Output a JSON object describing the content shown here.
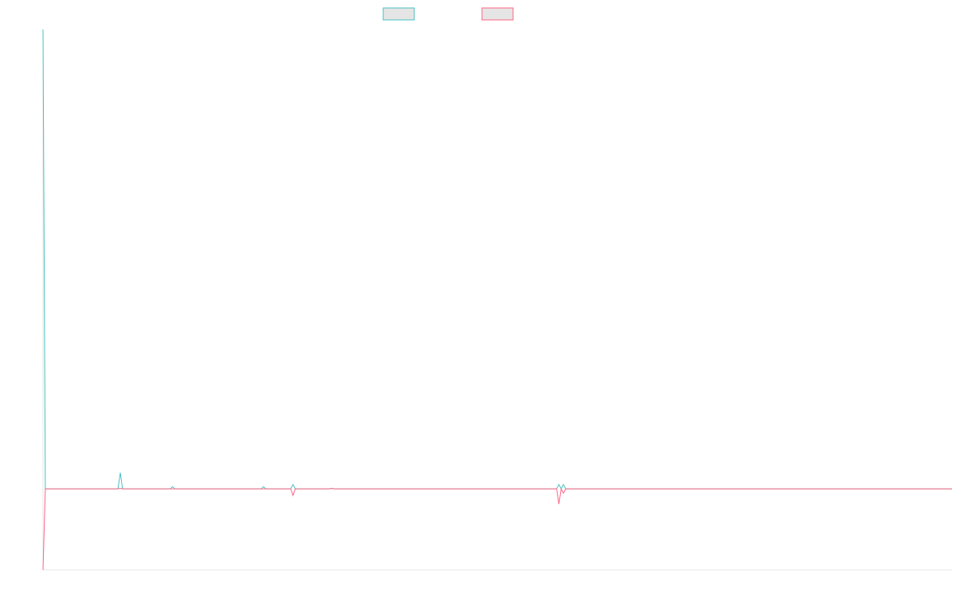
{
  "chart_data": {
    "type": "line",
    "title": "",
    "xlabel": "",
    "ylabel": "",
    "grid": false,
    "legend": "top-center",
    "xlim": [
      0,
      200
    ],
    "ylim": [
      -1.5,
      8.5
    ],
    "colors": {
      "series_a": "#4bc0c0",
      "series_b": "#ff6384",
      "axis": "#e6e6e6"
    },
    "series": [
      {
        "key": "series_a",
        "points": [
          [
            0,
            8.5
          ],
          [
            0.5,
            0
          ],
          [
            16.5,
            0
          ],
          [
            17,
            0.3
          ],
          [
            17.5,
            0
          ],
          [
            18.5,
            0
          ],
          [
            28,
            0
          ],
          [
            28.5,
            0.04
          ],
          [
            29,
            0
          ],
          [
            48,
            0
          ],
          [
            48.5,
            0.04
          ],
          [
            49,
            0
          ],
          [
            54.5,
            0
          ],
          [
            55,
            0.08
          ],
          [
            55.5,
            0
          ],
          [
            63,
            0
          ],
          [
            63.5,
            0.01
          ],
          [
            64,
            0
          ],
          [
            113,
            0
          ],
          [
            113.5,
            0.08
          ],
          [
            114,
            0
          ],
          [
            114.5,
            0.08
          ],
          [
            115,
            0
          ],
          [
            116,
            0
          ],
          [
            200,
            0
          ]
        ]
      },
      {
        "key": "series_b",
        "points": [
          [
            0,
            -1.5
          ],
          [
            0.5,
            0
          ],
          [
            16.5,
            0
          ],
          [
            17,
            0.01
          ],
          [
            17.5,
            0
          ],
          [
            54.5,
            0
          ],
          [
            55,
            -0.12
          ],
          [
            55.5,
            0
          ],
          [
            63,
            0
          ],
          [
            63.5,
            0.01
          ],
          [
            64,
            0
          ],
          [
            113,
            0
          ],
          [
            113.5,
            -0.28
          ],
          [
            114,
            0
          ],
          [
            114.5,
            -0.08
          ],
          [
            115,
            0
          ],
          [
            200,
            0
          ]
        ]
      }
    ]
  }
}
